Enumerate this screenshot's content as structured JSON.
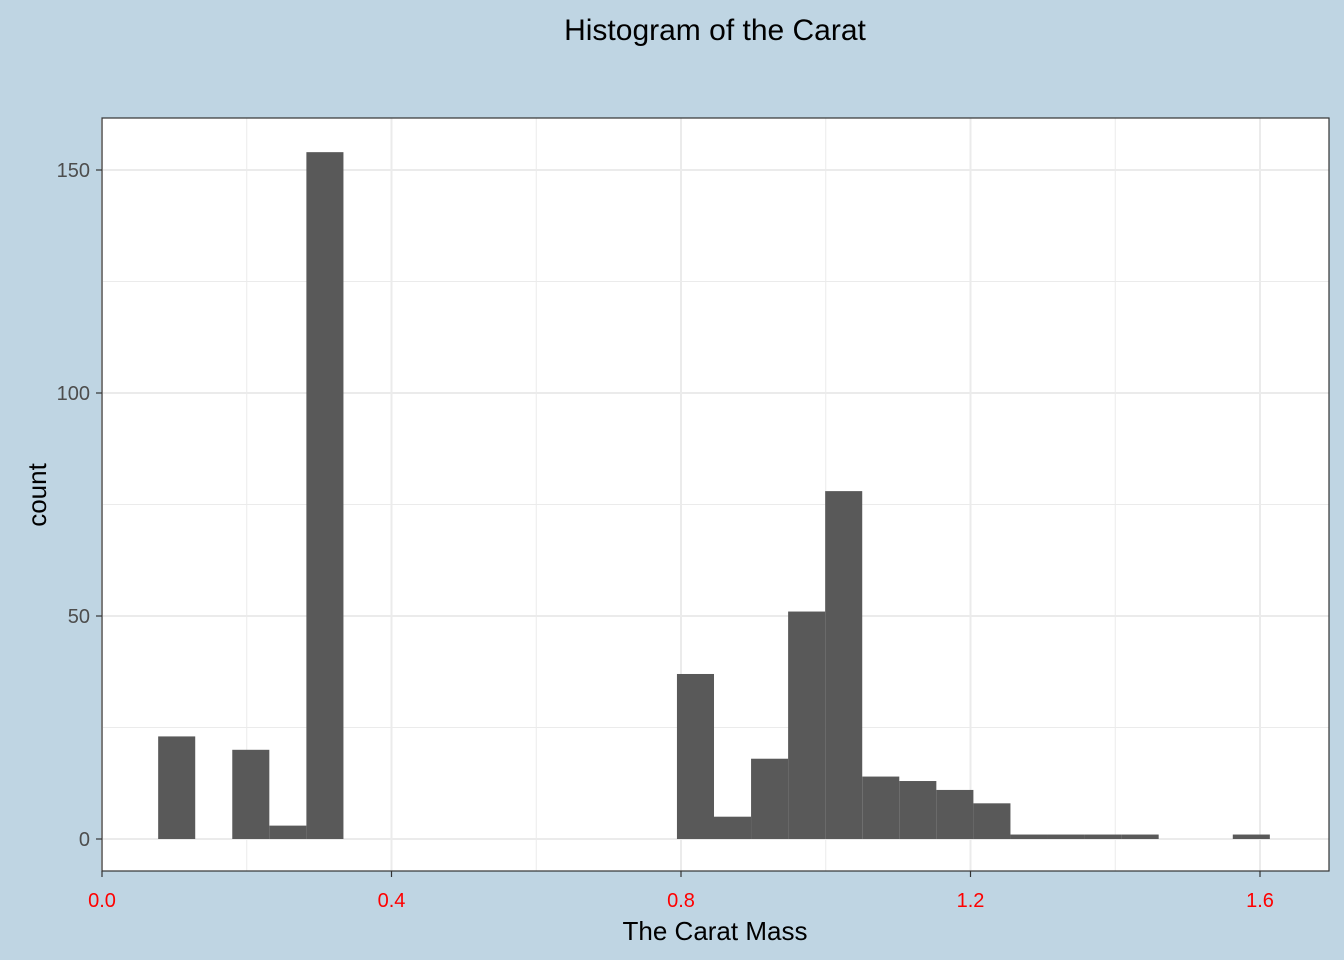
{
  "chart_data": {
    "type": "bar",
    "title": "Histogram of the Carat",
    "xlabel": "The Carat Mass",
    "ylabel": "count",
    "xlim": [
      0.0,
      1.68
    ],
    "ylim": [
      -7.5,
      161
    ],
    "x_ticks": [
      0.0,
      0.4,
      0.8,
      1.2,
      1.6
    ],
    "x_tick_labels": [
      "0.0",
      "0.4",
      "0.8",
      "1.2",
      "1.6"
    ],
    "y_ticks": [
      0,
      50,
      100,
      150
    ],
    "y_tick_labels": [
      "0",
      "50",
      "100",
      "150"
    ],
    "bin_width": 0.0512,
    "grid": true,
    "colors": {
      "background": "#bfd5e3",
      "panel": "#ffffff",
      "bar": "#595959",
      "x_tick_label": "#ff0000",
      "y_tick_label": "#4d4d4d",
      "grid": "#ebebeb"
    },
    "bins": [
      {
        "x0": 0.0776,
        "x1": 0.1288,
        "count": 23
      },
      {
        "x0": 0.1288,
        "x1": 0.18,
        "count": 0
      },
      {
        "x0": 0.18,
        "x1": 0.2312,
        "count": 20
      },
      {
        "x0": 0.2312,
        "x1": 0.2824,
        "count": 3
      },
      {
        "x0": 0.2824,
        "x1": 0.3336,
        "count": 154
      },
      {
        "x0": 0.3336,
        "x1": 0.7944,
        "count": 0
      },
      {
        "x0": 0.7944,
        "x1": 0.8456,
        "count": 37
      },
      {
        "x0": 0.8456,
        "x1": 0.8968,
        "count": 5
      },
      {
        "x0": 0.8968,
        "x1": 0.948,
        "count": 18
      },
      {
        "x0": 0.948,
        "x1": 0.9992,
        "count": 51
      },
      {
        "x0": 0.9992,
        "x1": 1.0504,
        "count": 78
      },
      {
        "x0": 1.0504,
        "x1": 1.1016,
        "count": 14
      },
      {
        "x0": 1.1016,
        "x1": 1.1528,
        "count": 13
      },
      {
        "x0": 1.1528,
        "x1": 1.204,
        "count": 11
      },
      {
        "x0": 1.204,
        "x1": 1.2552,
        "count": 8
      },
      {
        "x0": 1.2552,
        "x1": 1.3064,
        "count": 1
      },
      {
        "x0": 1.3064,
        "x1": 1.3576,
        "count": 1
      },
      {
        "x0": 1.3576,
        "x1": 1.4088,
        "count": 1
      },
      {
        "x0": 1.4088,
        "x1": 1.46,
        "count": 1
      },
      {
        "x0": 1.46,
        "x1": 1.5624,
        "count": 0
      },
      {
        "x0": 1.5624,
        "x1": 1.6136,
        "count": 1
      }
    ]
  }
}
